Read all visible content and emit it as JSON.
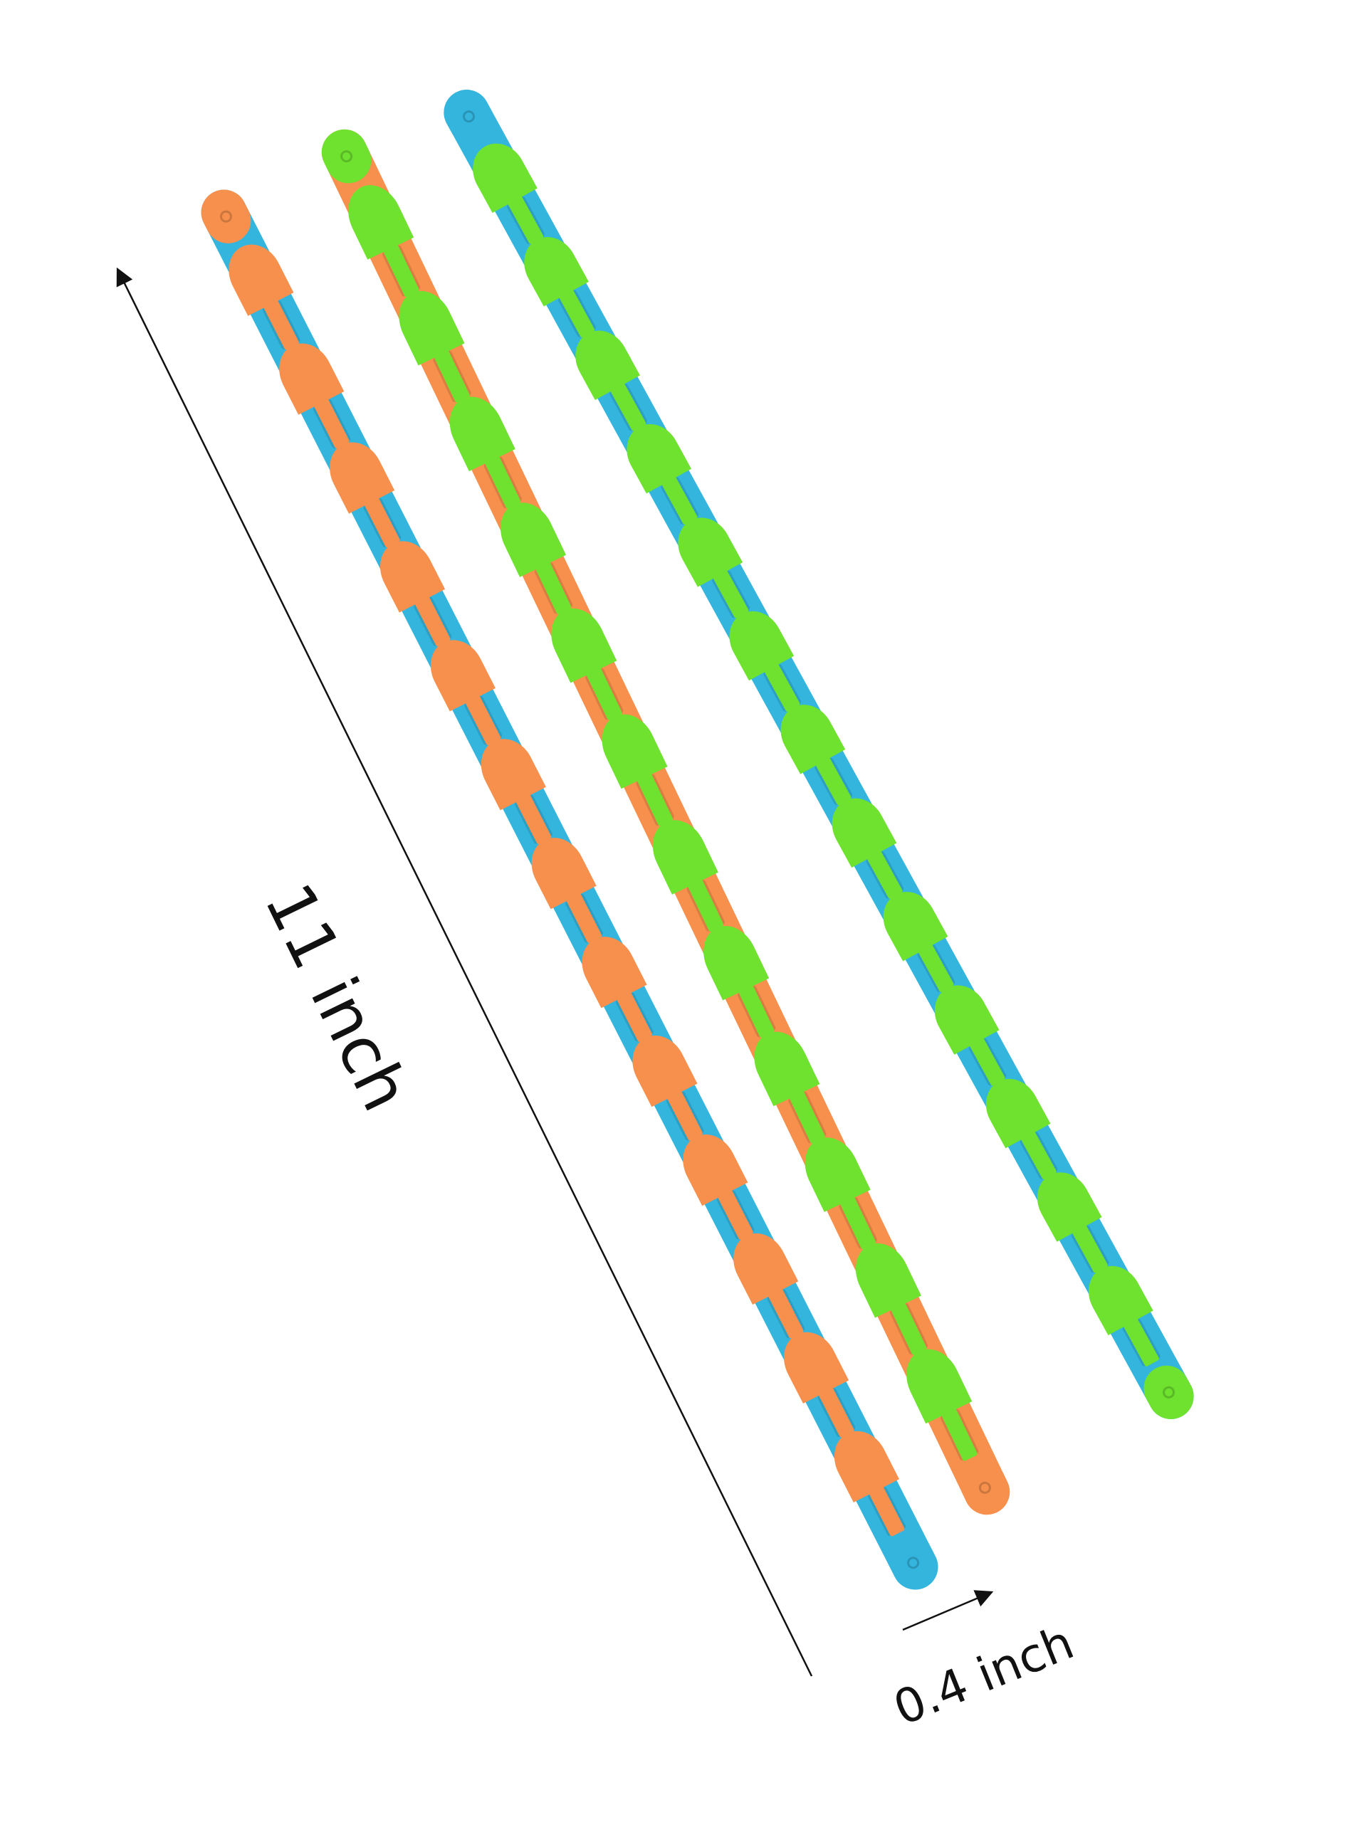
{
  "annotations": {
    "length_label": "11 inch",
    "width_label": "0.4 inch"
  },
  "toys": [
    {
      "name": "orange-blue wacky track",
      "link_color": "#F7904C",
      "track_color": "#33B5DE",
      "end_cap_top": "orange",
      "end_cap_bottom": "blue"
    },
    {
      "name": "green-orange wacky track",
      "link_color": "#6EE22F",
      "track_color": "#F7904C",
      "end_cap_top": "green",
      "end_cap_bottom": "orange"
    },
    {
      "name": "green-blue wacky track",
      "link_color": "#6EE22F",
      "track_color": "#33B5DE",
      "end_cap_top": "blue",
      "end_cap_bottom": "green"
    }
  ],
  "colors": {
    "background": "#FFFFFF",
    "arrow": "#111111",
    "orange": "#F7904C",
    "blue": "#33B5DE",
    "green": "#6EE22F"
  }
}
